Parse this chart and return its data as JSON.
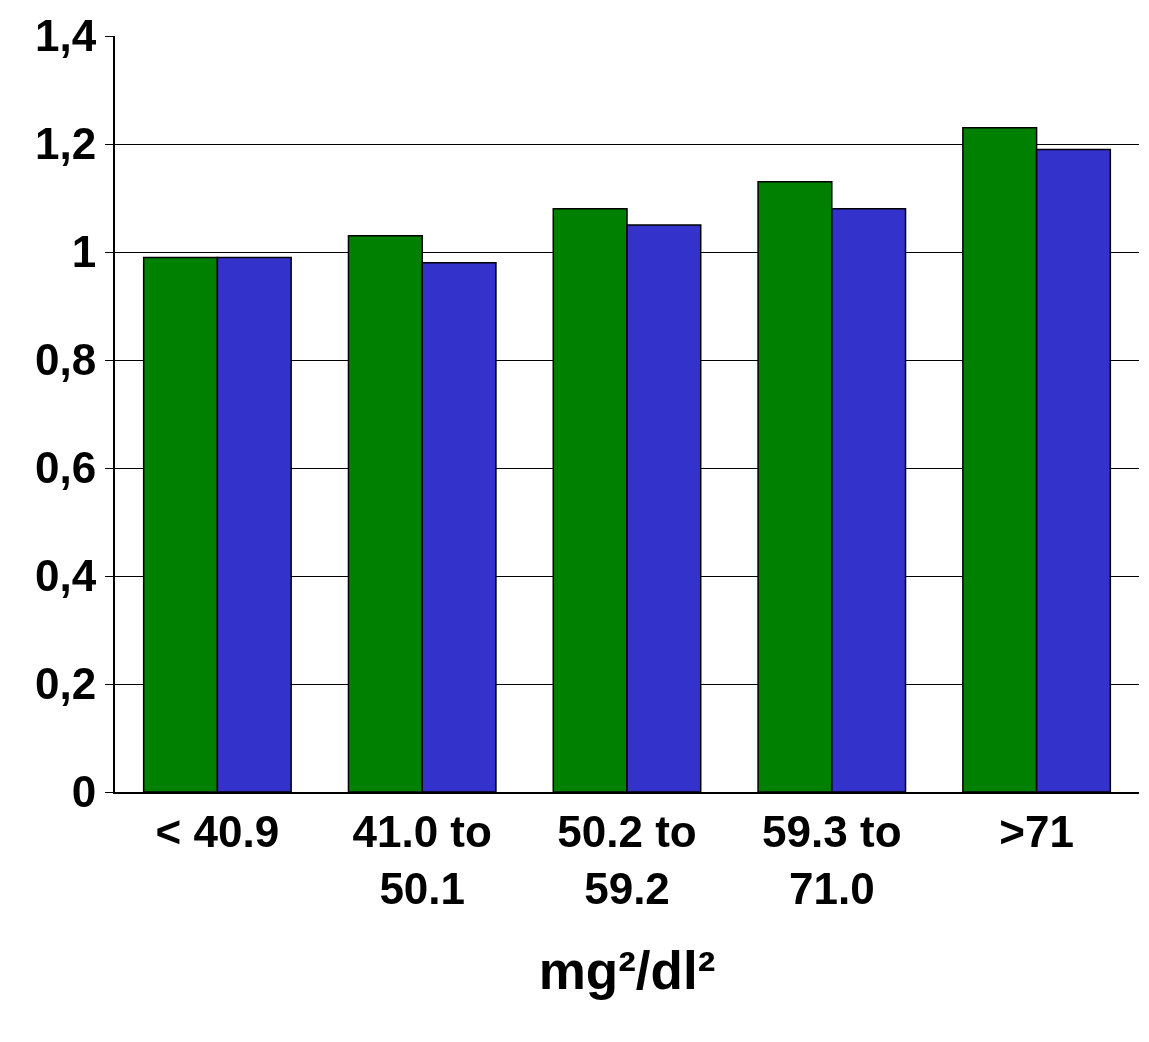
{
  "chart_data": {
    "type": "bar",
    "xlabel": "mg²/dl²",
    "categories": [
      "< 40.9",
      "41.0 to\n50.1",
      "50.2 to\n59.2",
      "59.3 to\n71.0",
      ">71"
    ],
    "series": [
      {
        "color": "#008000",
        "values": [
          0.99,
          1.03,
          1.08,
          1.13,
          1.23
        ]
      },
      {
        "color": "#3333cc",
        "values": [
          0.99,
          0.98,
          1.05,
          1.08,
          1.19
        ]
      }
    ],
    "ylim": [
      0,
      1.4
    ],
    "yticks": [
      0,
      {
        "value": 0.2,
        "label": "0,2"
      },
      {
        "value": 0.4,
        "label": "0,4"
      },
      {
        "value": 0.6,
        "label": "0,6"
      },
      {
        "value": 0.8,
        "label": "0,8"
      },
      1,
      {
        "value": 1.2,
        "label": "1,2"
      },
      {
        "value": 1.4,
        "label": "1,4"
      }
    ],
    "grid": "y"
  }
}
